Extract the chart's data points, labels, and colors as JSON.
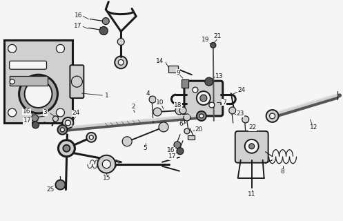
{
  "bg_color": "#f5f5f5",
  "fg_color": "#1a1a1a",
  "gray_dark": "#555555",
  "gray_med": "#888888",
  "gray_light": "#bbbbbb",
  "gray_fill": "#d0d0d0",
  "figsize": [
    4.97,
    3.2
  ],
  "dpi": 100,
  "xlim": [
    0,
    497
  ],
  "ylim": [
    0,
    320
  ]
}
